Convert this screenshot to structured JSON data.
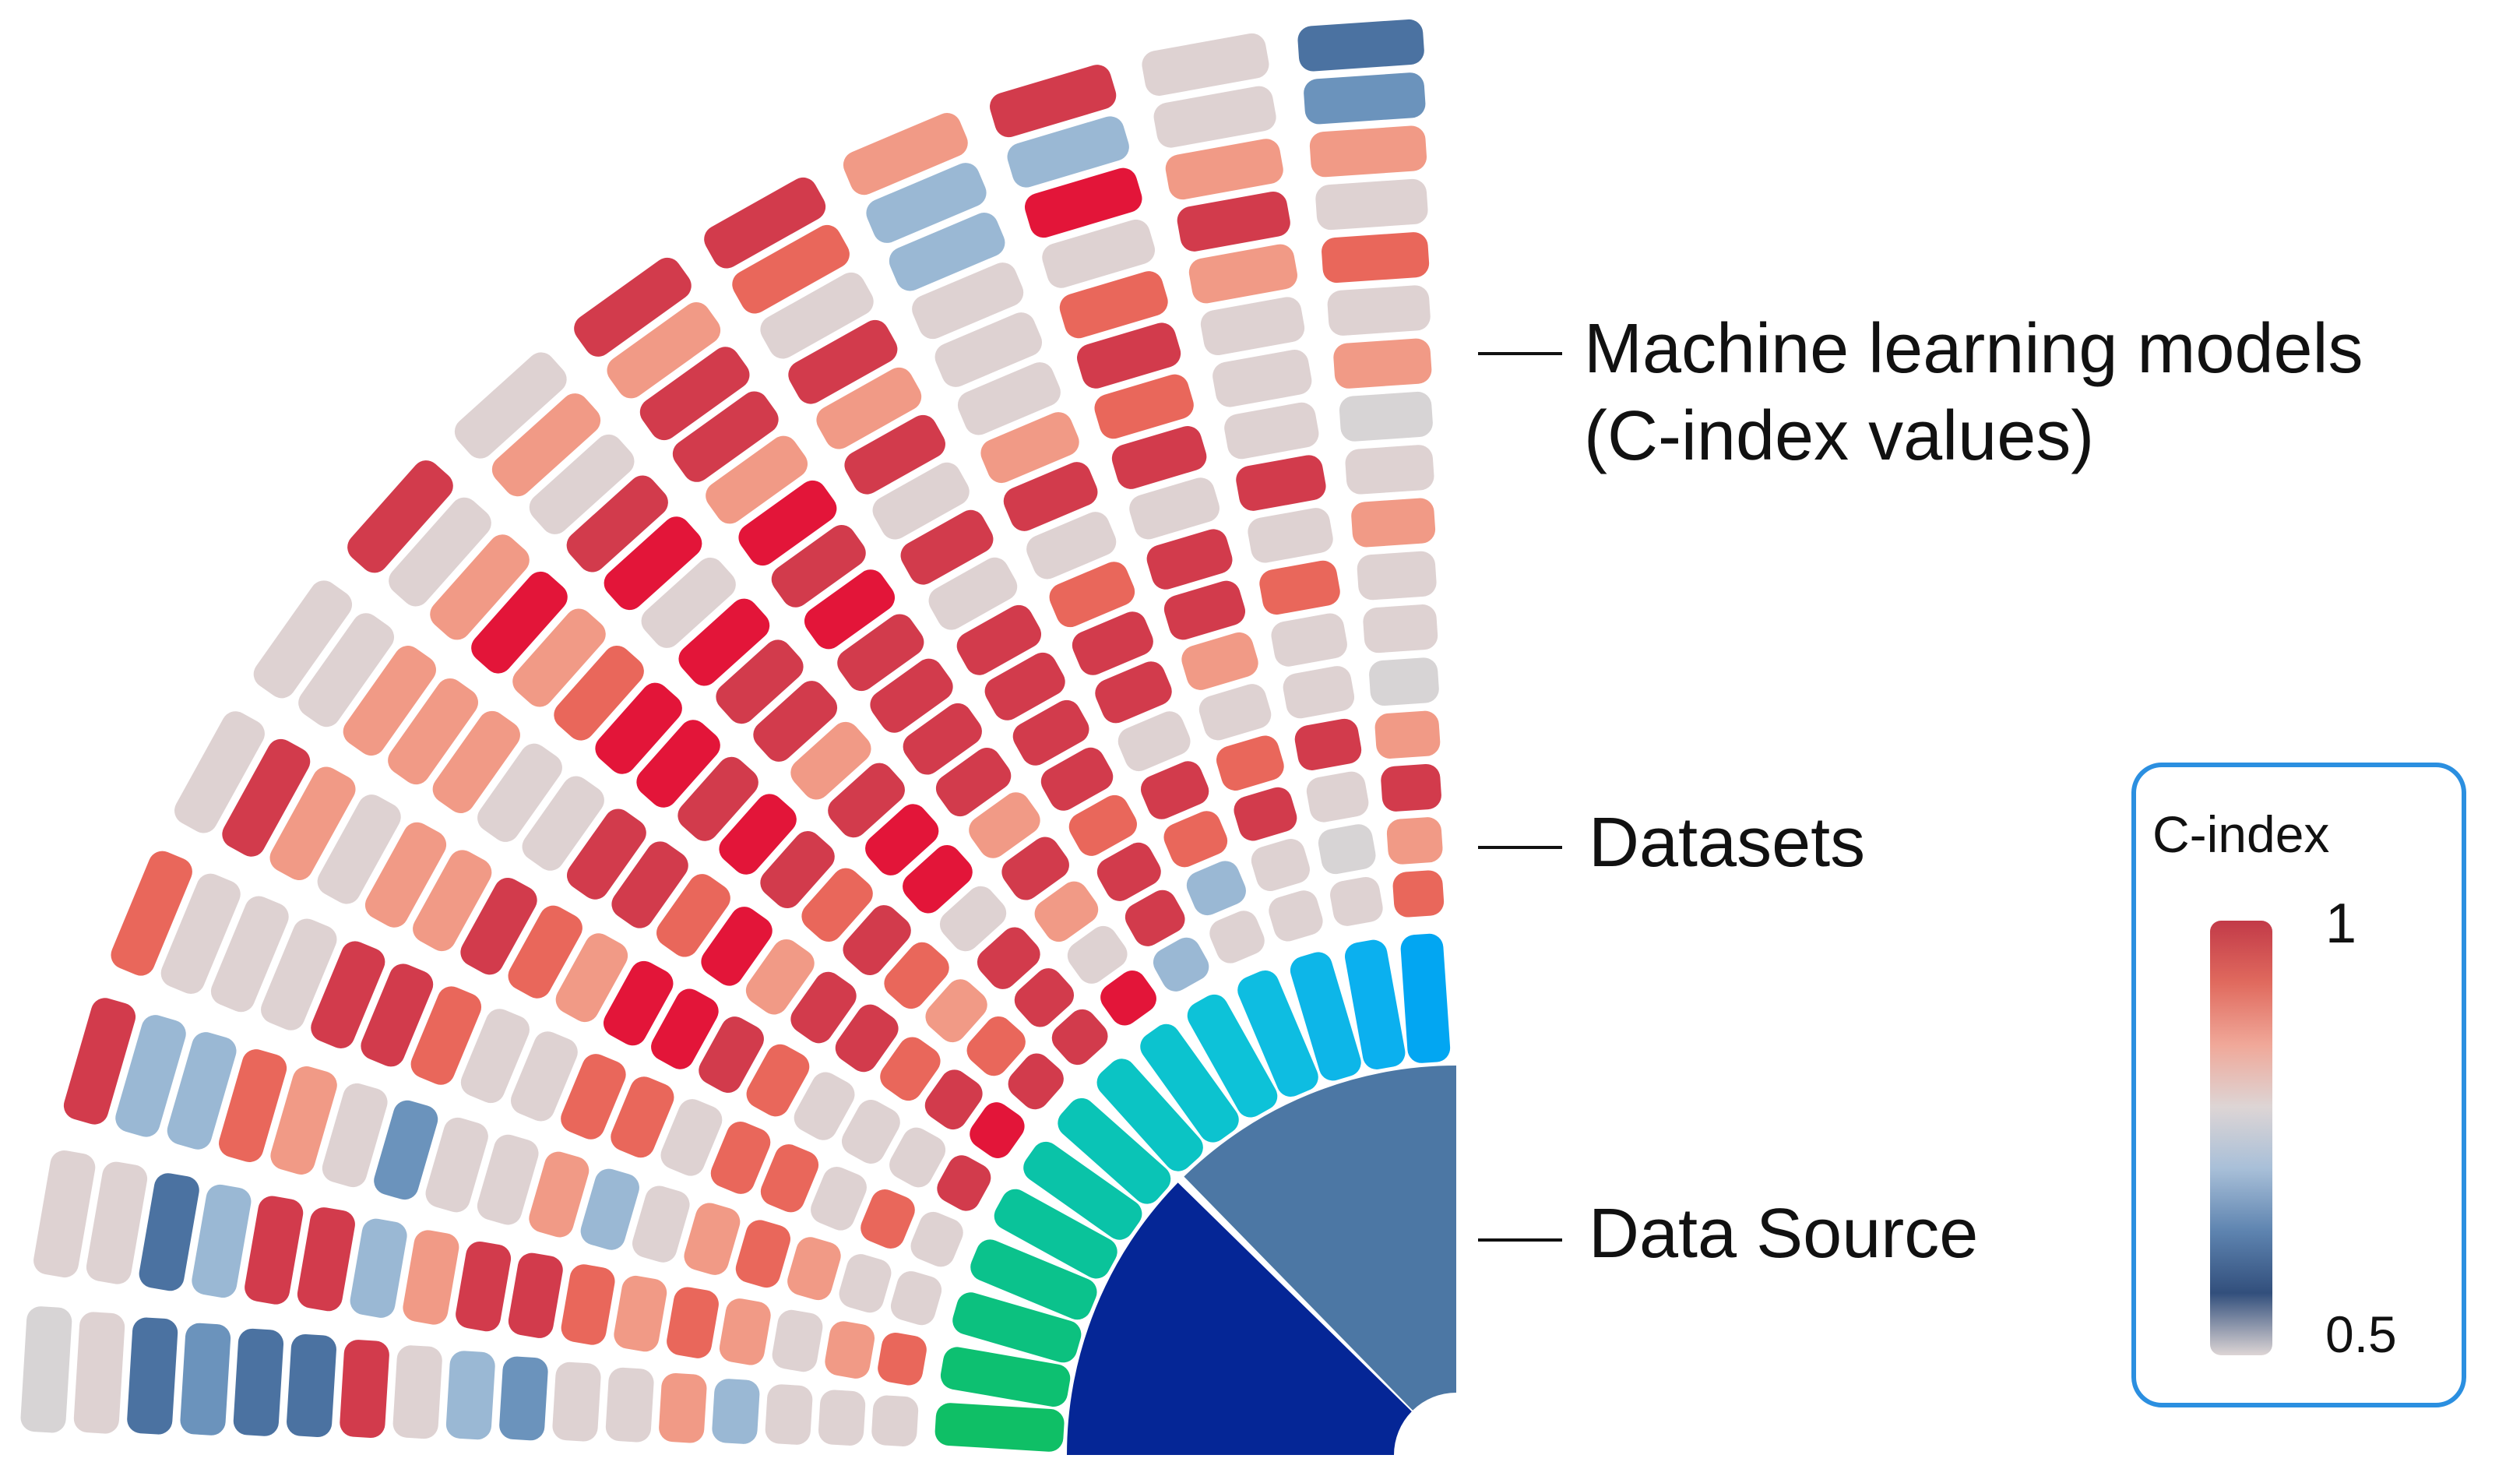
{
  "labels": {
    "models": [
      "Machine learning models",
      "(C-index values)"
    ],
    "datasets": "Datasets",
    "source": "Data Source"
  },
  "legend": {
    "title": "C-index",
    "max_label": "1",
    "min_label": "0.5",
    "border_color": "#2b8fe0",
    "gradient": [
      "#c23a48",
      "#e06a5e",
      "#f0a899",
      "#ddd5d5",
      "#a8bfd8",
      "#5e84b0",
      "#324f7c",
      "#ddd5d5"
    ]
  },
  "data_sources": {
    "colors": [
      "#4c77a4",
      "#052696"
    ]
  },
  "datasets": {
    "colors": [
      "#02a6f2",
      "#0bb0ef",
      "#0db6e8",
      "#0ebde1",
      "#0dc2d8",
      "#0cc3cf",
      "#0bc4c4",
      "#0ac4b6",
      "#0ac3a8",
      "#0ac39a",
      "#0bc28c",
      "#0cc17f",
      "#0dc071",
      "#0fbf66"
    ]
  },
  "models": {
    "palette": [
      "#d7d4d5",
      "#ded2d2",
      "#f19a86",
      "#e9675b",
      "#d23b4c",
      "#e31539",
      "#9ab8d4",
      "#6b93bc",
      "#4b72a1"
    ],
    "rows": [
      [
        1,
        3,
        1,
        1,
        4,
        5,
        4,
        4,
        5,
        6,
        1,
        1,
        1,
        3
      ],
      [
        1,
        2,
        1,
        3,
        1,
        4,
        3,
        4,
        1,
        4,
        6,
        1,
        0,
        2
      ],
      [
        1,
        1,
        2,
        1,
        1,
        3,
        2,
        4,
        2,
        4,
        3,
        4,
        1,
        4
      ],
      [
        6,
        2,
        3,
        3,
        1,
        4,
        3,
        1,
        4,
        3,
        4,
        3,
        4,
        2
      ],
      [
        2,
        3,
        2,
        3,
        3,
        4,
        4,
        5,
        2,
        4,
        1,
        1,
        1,
        0
      ],
      [
        1,
        2,
        1,
        1,
        4,
        2,
        3,
        5,
        4,
        4,
        4,
        2,
        1,
        1
      ],
      [
        1,
        3,
        6,
        3,
        5,
        5,
        4,
        4,
        4,
        4,
        4,
        4,
        3,
        1
      ],
      [
        7,
        4,
        2,
        3,
        5,
        3,
        5,
        2,
        4,
        4,
        3,
        4,
        1,
        2
      ],
      [
        6,
        4,
        1,
        1,
        2,
        4,
        4,
        4,
        4,
        1,
        1,
        1,
        4,
        1
      ],
      [
        1,
        2,
        1,
        1,
        3,
        4,
        5,
        4,
        5,
        4,
        4,
        4,
        1,
        0
      ],
      [
        4,
        6,
        7,
        3,
        4,
        1,
        5,
        5,
        4,
        1,
        2,
        3,
        1,
        2
      ],
      [
        8,
        4,
        1,
        4,
        2,
        1,
        3,
        1,
        5,
        4,
        1,
        4,
        1,
        1
      ],
      [
        8,
        4,
        2,
        4,
        2,
        2,
        2,
        5,
        2,
        2,
        1,
        3,
        2,
        3
      ],
      [
        7,
        6,
        3,
        1,
        1,
        2,
        5,
        4,
        4,
        4,
        1,
        1,
        4,
        1
      ],
      [
        8,
        8,
        6,
        1,
        2,
        2,
        2,
        1,
        4,
        1,
        6,
        5,
        2,
        2
      ],
      [
        1,
        1,
        6,
        1,
        4,
        1,
        1,
        2,
        2,
        3,
        6,
        6,
        1,
        7
      ],
      [
        0,
        1,
        4,
        3,
        1,
        1,
        4,
        1,
        4,
        4,
        2,
        4,
        1,
        8
      ]
    ]
  }
}
